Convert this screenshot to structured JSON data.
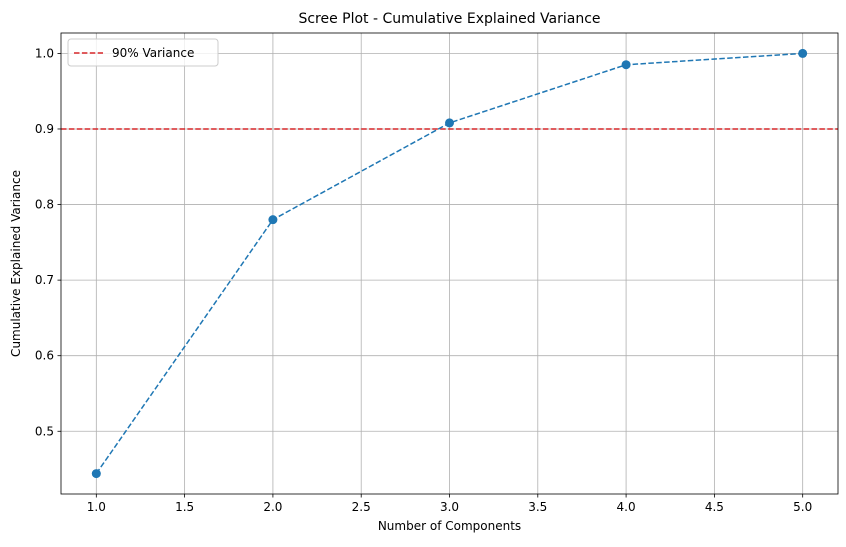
{
  "chart_data": {
    "type": "line",
    "title": "Scree Plot - Cumulative Explained Variance",
    "xlabel": "Number of Components",
    "ylabel": "Cumulative Explained Variance",
    "xlim": [
      0.8,
      5.2
    ],
    "ylim": [
      0.417,
      1.027
    ],
    "xticks": [
      1.0,
      1.5,
      2.0,
      2.5,
      3.0,
      3.5,
      4.0,
      4.5,
      5.0
    ],
    "xtick_labels": [
      "1.0",
      "1.5",
      "2.0",
      "2.5",
      "3.0",
      "3.5",
      "4.0",
      "4.5",
      "5.0"
    ],
    "yticks": [
      0.5,
      0.6,
      0.7,
      0.8,
      0.9,
      1.0
    ],
    "ytick_labels": [
      "0.5",
      "0.6",
      "0.7",
      "0.8",
      "0.9",
      "1.0"
    ],
    "grid": true,
    "legend_position": "top-left",
    "series": [
      {
        "x": [
          1,
          2,
          3,
          4,
          5
        ],
        "values": [
          0.444,
          0.78,
          0.908,
          0.985,
          1.0
        ],
        "color": "#1f77b4",
        "line_style": "dashed",
        "marker": "circle"
      }
    ],
    "reference_lines": [
      {
        "name": "90% Variance",
        "orientation": "horizontal",
        "value": 0.9,
        "color": "#d62728",
        "line_style": "dashed"
      }
    ]
  }
}
